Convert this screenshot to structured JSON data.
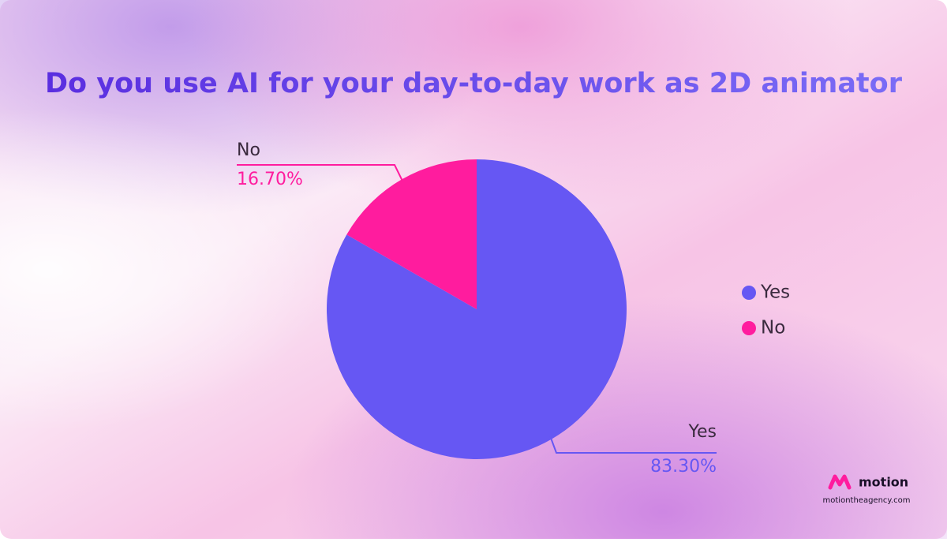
{
  "chart_data": {
    "type": "pie",
    "title": "Do you use AI for your day-to-day work as 2D animator",
    "categories": [
      "Yes",
      "No"
    ],
    "values": [
      83.3,
      16.7
    ],
    "value_labels": [
      "83.30%",
      "16.70%"
    ],
    "colors": [
      "#6657f3",
      "#ff1c9e"
    ],
    "legend": "right"
  },
  "brand": {
    "name": "motion",
    "url": "motiontheagency.com"
  }
}
